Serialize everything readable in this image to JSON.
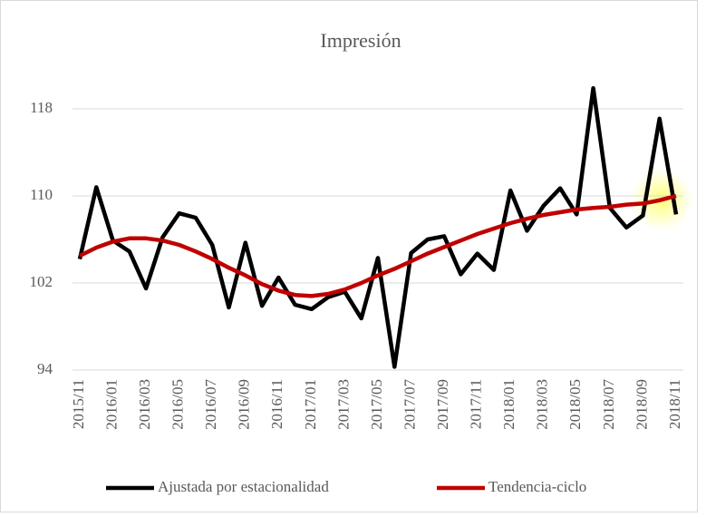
{
  "chart_data": {
    "type": "line",
    "title": "Impresión",
    "categories": [
      "2015/11",
      null,
      "2016/01",
      null,
      "2016/03",
      null,
      "2016/05",
      null,
      "2016/07",
      null,
      "2016/09",
      null,
      "2016/11",
      null,
      "2017/01",
      null,
      "2017/03",
      null,
      "2017/05",
      null,
      "2017/07",
      null,
      "2017/09",
      null,
      "2017/11",
      null,
      "2018/01",
      null,
      "2018/03",
      null,
      "2018/05",
      null,
      "2018/07",
      null,
      "2018/09",
      null,
      "2018/11"
    ],
    "series": [
      {
        "name": "Ajustada por estacionalidad",
        "color": "#000000",
        "values": [
          104.2,
          110.8,
          105.9,
          104.9,
          101.5,
          106.2,
          108.4,
          108.0,
          105.5,
          99.75,
          105.7,
          99.9,
          102.5,
          100.0,
          99.6,
          100.7,
          101.2,
          98.75,
          104.3,
          94.3,
          104.75,
          106.0,
          106.3,
          102.8,
          104.7,
          103.2,
          110.5,
          106.8,
          109.1,
          110.7,
          108.3,
          119.9,
          108.9,
          107.1,
          108.2,
          117.1,
          108.3
        ]
      },
      {
        "name": "Tendencia-ciclo",
        "color": "#c00000",
        "values": [
          104.5,
          105.25,
          105.8,
          106.1,
          106.1,
          105.9,
          105.5,
          104.9,
          104.2,
          103.4,
          102.7,
          101.9,
          101.3,
          100.9,
          100.8,
          101.0,
          101.4,
          102.0,
          102.7,
          103.3,
          104.0,
          104.7,
          105.3,
          105.9,
          106.5,
          107.0,
          107.5,
          107.9,
          108.25,
          108.5,
          108.75,
          108.9,
          109.0,
          109.2,
          109.3,
          109.6,
          110.0
        ]
      }
    ],
    "ylim": [
      94,
      120
    ],
    "yticks": [
      94,
      102,
      110,
      118
    ],
    "grid": true,
    "legend": "bottom"
  }
}
